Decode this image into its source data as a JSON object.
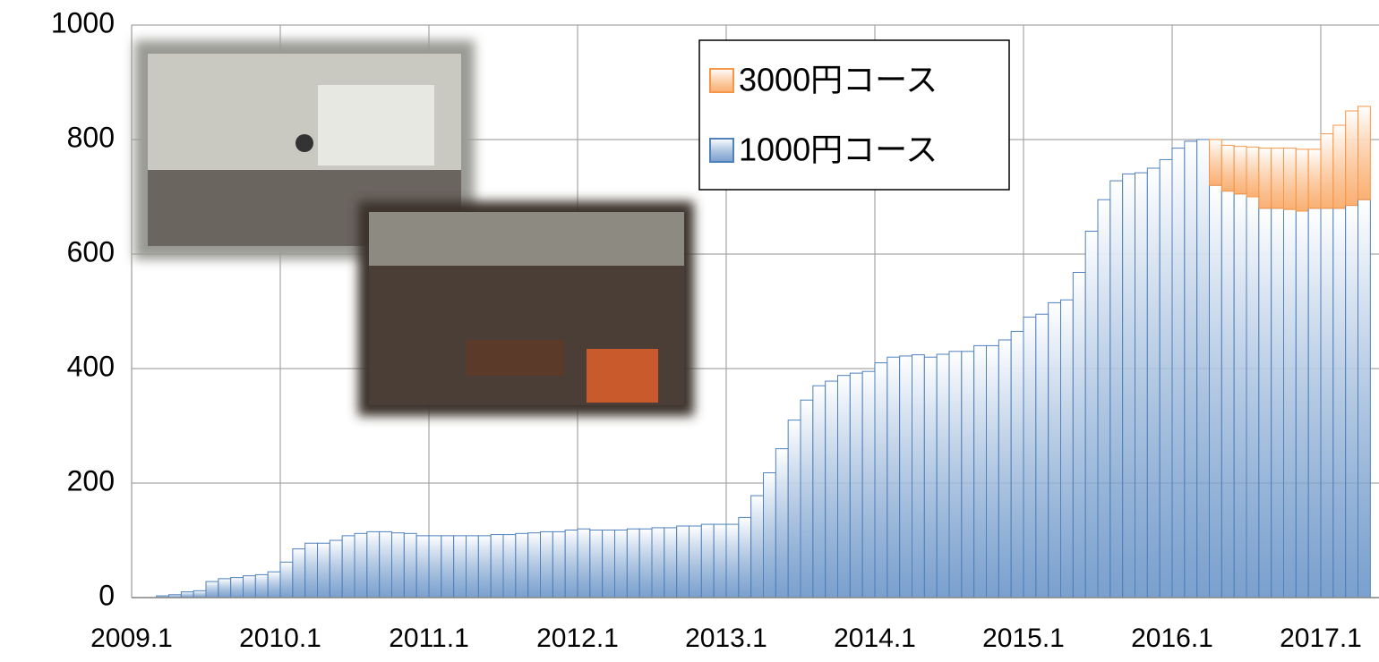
{
  "chart_data": {
    "type": "stacked_bar",
    "categories": [
      "2009.1",
      null,
      null,
      null,
      null,
      null,
      null,
      null,
      null,
      null,
      null,
      null,
      "2010.1",
      null,
      null,
      null,
      null,
      null,
      null,
      null,
      null,
      null,
      null,
      null,
      "2011.1",
      null,
      null,
      null,
      null,
      null,
      null,
      null,
      null,
      null,
      null,
      null,
      "2012.1",
      null,
      null,
      null,
      null,
      null,
      null,
      null,
      null,
      null,
      null,
      null,
      "2013.1",
      null,
      null,
      null,
      null,
      null,
      null,
      null,
      null,
      null,
      null,
      null,
      "2014.1",
      null,
      null,
      null,
      null,
      null,
      null,
      null,
      null,
      null,
      null,
      null,
      "2015.1",
      null,
      null,
      null,
      null,
      null,
      null,
      null,
      null,
      null,
      null,
      null,
      "2016.1",
      null,
      null,
      null,
      null,
      null,
      null,
      null,
      null,
      null,
      null,
      null,
      "2017.1",
      null,
      null,
      null
    ],
    "series": [
      {
        "name": "1000円コース",
        "color": "#4f81bd",
        "values": [
          0,
          0,
          3,
          5,
          10,
          12,
          28,
          33,
          35,
          38,
          40,
          45,
          62,
          85,
          95,
          95,
          100,
          108,
          112,
          115,
          115,
          113,
          112,
          108,
          108,
          108,
          108,
          108,
          108,
          110,
          110,
          112,
          113,
          115,
          115,
          118,
          120,
          118,
          118,
          118,
          120,
          120,
          122,
          122,
          125,
          125,
          128,
          128,
          128,
          140,
          178,
          218,
          260,
          310,
          345,
          370,
          378,
          388,
          392,
          395,
          410,
          420,
          422,
          424,
          420,
          425,
          430,
          430,
          440,
          440,
          450,
          465,
          490,
          495,
          515,
          520,
          568,
          640,
          695,
          728,
          740,
          742,
          750,
          765,
          785,
          797,
          800,
          720,
          710,
          705,
          700,
          680,
          680,
          678,
          675,
          680,
          680,
          680,
          685,
          695
        ]
      },
      {
        "name": "3000円コース",
        "color": "#f79646",
        "values": [
          null,
          null,
          null,
          null,
          null,
          null,
          null,
          null,
          null,
          null,
          null,
          null,
          null,
          null,
          null,
          null,
          null,
          null,
          null,
          null,
          null,
          null,
          null,
          null,
          null,
          null,
          null,
          null,
          null,
          null,
          null,
          null,
          null,
          null,
          null,
          null,
          null,
          null,
          null,
          null,
          null,
          null,
          null,
          null,
          null,
          null,
          null,
          null,
          null,
          null,
          null,
          null,
          null,
          null,
          null,
          null,
          null,
          null,
          null,
          null,
          null,
          null,
          null,
          null,
          null,
          null,
          null,
          null,
          null,
          null,
          null,
          null,
          null,
          null,
          null,
          null,
          null,
          null,
          null,
          null,
          null,
          null,
          null,
          null,
          null,
          null,
          null,
          80,
          80,
          83,
          87,
          105,
          105,
          107,
          108,
          103,
          130,
          145,
          165,
          163
        ]
      }
    ],
    "ylim": [
      0,
      1000
    ],
    "yticks": [
      0,
      200,
      400,
      600,
      800,
      1000
    ],
    "grid": true,
    "legend": "top-center"
  }
}
